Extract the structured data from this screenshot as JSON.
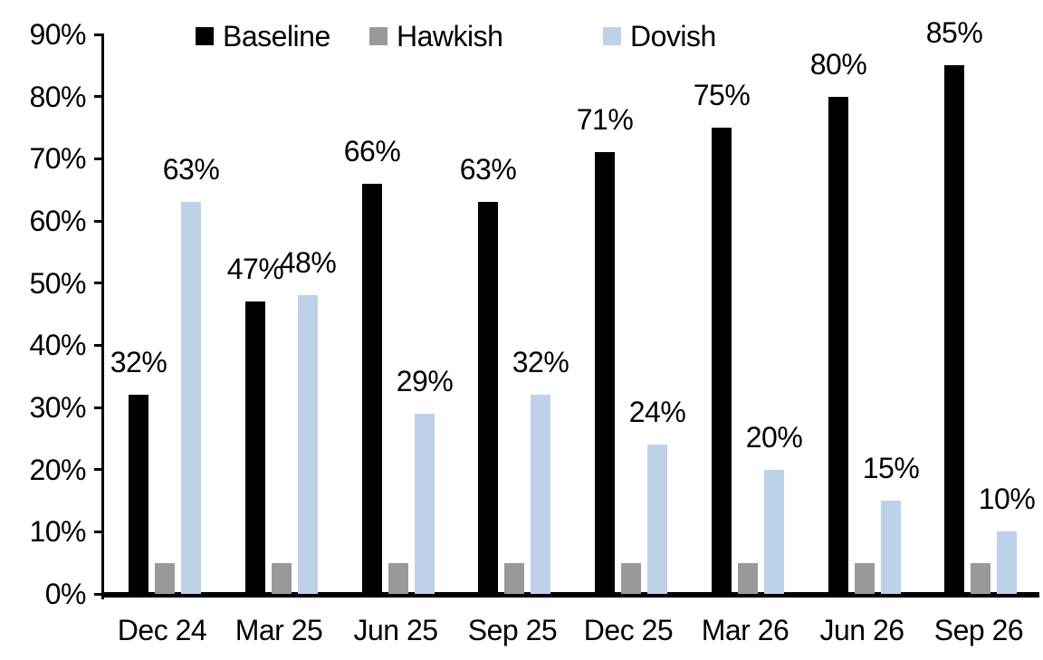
{
  "chart_data": {
    "type": "bar",
    "title": "",
    "categories": [
      "Dec 24",
      "Mar 25",
      "Jun 25",
      "Sep 25",
      "Dec 25",
      "Mar 26",
      "Jun 26",
      "Sep 26"
    ],
    "series": [
      {
        "name": "Baseline",
        "color": "#000000",
        "values": [
          32,
          47,
          66,
          63,
          71,
          75,
          80,
          85
        ],
        "labels": [
          "32%",
          "47%",
          "66%",
          "63%",
          "71%",
          "75%",
          "80%",
          "85%"
        ]
      },
      {
        "name": "Hawkish",
        "color": "#999999",
        "values": [
          5,
          5,
          5,
          5,
          5,
          5,
          5,
          5
        ],
        "labels": [
          "",
          "",
          "",
          "",
          "",
          "",
          "",
          ""
        ]
      },
      {
        "name": "Dovish",
        "color": "#bdd1e9",
        "values": [
          63,
          48,
          29,
          32,
          24,
          20,
          15,
          10
        ],
        "labels": [
          "63%",
          "48%",
          "29%",
          "32%",
          "24%",
          "20%",
          "15%",
          "10%"
        ]
      }
    ],
    "ylim": [
      0,
      90
    ],
    "ytick_step": 10,
    "ytick_labels": [
      "0%",
      "10%",
      "20%",
      "30%",
      "40%",
      "50%",
      "60%",
      "70%",
      "80%",
      "90%"
    ],
    "grid": false,
    "legend_position": "top",
    "axis_color": "#000000"
  }
}
